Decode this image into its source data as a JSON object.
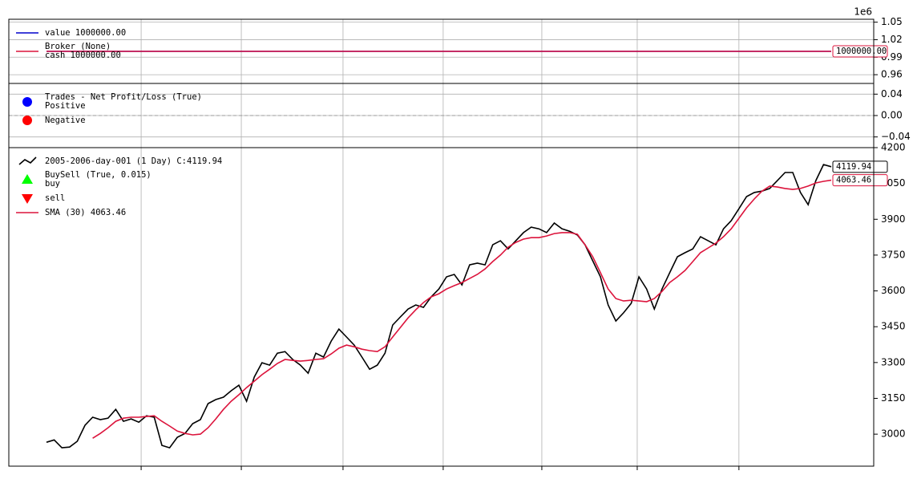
{
  "chart_data": [
    {
      "type": "line",
      "offset_label": "1e6",
      "xlim": [
        -24.5,
        537.6
      ],
      "xticks": [
        61.5,
        126.6,
        192.7,
        257.8,
        321.9,
        383.9,
        450
      ],
      "ylim": [
        945000,
        1055000
      ],
      "yticks": [
        {
          "value": 960000,
          "label": "0.96"
        },
        {
          "value": 990000,
          "label": "0.99"
        },
        {
          "value": 1020000,
          "label": "1.02"
        },
        {
          "value": 1050000,
          "label": "1.05"
        }
      ],
      "ygrid": true,
      "series": [
        {
          "name": "value 1000000.00",
          "color": "#0000cc",
          "marker": "line",
          "x": [
            0,
            510
          ],
          "values": [
            1000000,
            1000000
          ]
        },
        {
          "name": "cash 1000000.00",
          "legend_title": "Broker (None)",
          "color": "#dc143c",
          "marker": "line",
          "x": [
            0,
            510
          ],
          "values": [
            1000000,
            1000000
          ],
          "value_labels": [
            null,
            "1000000.00"
          ]
        }
      ]
    },
    {
      "type": "scatter",
      "xlim": [
        -24.5,
        537.6
      ],
      "xticks": [
        61.5,
        126.6,
        192.7,
        257.8,
        321.9,
        383.9,
        450
      ],
      "ylim": [
        -0.06,
        0.06
      ],
      "yticks": [
        {
          "value": -0.04,
          "label": "−0.04"
        },
        {
          "value": 0,
          "label": "0.00"
        },
        {
          "value": 0.04,
          "label": "0.04"
        }
      ],
      "ygrid": true,
      "hline": 0,
      "series": [
        {
          "name": "Positive",
          "legend_title": "Trades - Net Profit/Loss (True)",
          "color": "#0000ff",
          "marker": "circle",
          "x": [],
          "values": []
        },
        {
          "name": "Negative",
          "color": "#ff0000",
          "marker": "circle",
          "x": [],
          "values": []
        }
      ]
    },
    {
      "type": "line",
      "xlim": [
        -24.5,
        537.6
      ],
      "xticks": [
        61.5,
        126.6,
        192.7,
        257.8,
        321.9,
        383.9,
        450
      ],
      "ylim": [
        2866,
        4200
      ],
      "yticks": [
        3000,
        3150,
        3300,
        3450,
        3600,
        3750,
        3900,
        4050,
        4200
      ],
      "ygrid": false,
      "series": [
        {
          "name": "2005-2006-day-001 (1 Day) C:4119.94",
          "color": "#000000",
          "marker": "zigzag",
          "x": [
            0,
            5,
            10,
            15,
            20,
            25,
            30,
            35,
            40,
            45,
            50,
            55,
            60,
            65,
            70,
            75,
            80,
            85,
            90,
            95,
            100,
            105,
            110,
            115,
            120,
            125,
            130,
            135,
            140,
            145,
            150,
            155,
            160,
            165,
            170,
            175,
            180,
            185,
            190,
            195,
            200,
            205,
            210,
            215,
            220,
            225,
            230,
            235,
            240,
            245,
            250,
            255,
            260,
            265,
            270,
            275,
            280,
            285,
            290,
            295,
            300,
            305,
            310,
            315,
            320,
            325,
            330,
            335,
            340,
            345,
            350,
            355,
            360,
            365,
            370,
            375,
            380,
            385,
            390,
            395,
            400,
            405,
            410,
            415,
            420,
            425,
            430,
            435,
            440,
            445,
            450,
            455,
            460,
            465,
            470,
            475,
            480,
            485,
            490,
            495,
            500,
            505,
            510
          ],
          "values": [
            2966,
            2976,
            2943,
            2946,
            2970,
            3037,
            3071,
            3061,
            3067,
            3104,
            3054,
            3064,
            3050,
            3077,
            3071,
            2953,
            2943,
            2987,
            3003,
            3044,
            3061,
            3128,
            3145,
            3155,
            3182,
            3205,
            3138,
            3239,
            3299,
            3289,
            3339,
            3346,
            3313,
            3289,
            3255,
            3339,
            3323,
            3390,
            3440,
            3407,
            3373,
            3323,
            3272,
            3289,
            3339,
            3457,
            3491,
            3524,
            3541,
            3531,
            3575,
            3608,
            3659,
            3669,
            3625,
            3709,
            3716,
            3709,
            3793,
            3810,
            3776,
            3810,
            3844,
            3867,
            3860,
            3844,
            3884,
            3860,
            3850,
            3834,
            3793,
            3726,
            3659,
            3541,
            3474,
            3508,
            3548,
            3659,
            3608,
            3524,
            3608,
            3676,
            3743,
            3760,
            3776,
            3827,
            3810,
            3793,
            3860,
            3894,
            3944,
            3995,
            4012,
            4018,
            4029,
            4062,
            4096,
            4096,
            4012,
            3961,
            4062,
            4129,
            4119.94
          ],
          "value_labels": [
            null,
            null,
            null,
            null,
            null,
            null,
            null,
            null,
            null,
            null,
            null,
            null,
            null,
            null,
            null,
            null,
            null,
            null,
            null,
            null,
            null,
            null,
            null,
            null,
            null,
            null,
            null,
            null,
            null,
            null,
            null,
            null,
            null,
            null,
            null,
            null,
            null,
            null,
            null,
            null,
            null,
            null,
            null,
            null,
            null,
            null,
            null,
            null,
            null,
            null,
            null,
            null,
            null,
            null,
            null,
            null,
            null,
            null,
            null,
            null,
            null,
            null,
            null,
            null,
            null,
            null,
            null,
            null,
            null,
            null,
            null,
            null,
            null,
            null,
            null,
            null,
            null,
            null,
            null,
            null,
            null,
            null,
            null,
            null,
            null,
            null,
            null,
            null,
            null,
            null,
            null,
            null,
            null,
            null,
            null,
            null,
            null,
            null,
            null,
            null,
            null,
            null,
            "4119.94"
          ]
        },
        {
          "name": "buy",
          "legend_title": "BuySell (True, 0.015)",
          "color": "#00ff00",
          "marker": "up",
          "x": [],
          "values": []
        },
        {
          "name": "sell",
          "color": "#ff0000",
          "marker": "down",
          "x": [],
          "values": []
        },
        {
          "name": "SMA (30) 4063.46",
          "color": "#dc143c",
          "marker": "line",
          "x": [
            30,
            35,
            40,
            45,
            50,
            55,
            60,
            65,
            70,
            75,
            80,
            85,
            90,
            95,
            100,
            105,
            110,
            115,
            120,
            125,
            130,
            135,
            140,
            145,
            150,
            155,
            160,
            165,
            170,
            175,
            180,
            185,
            190,
            195,
            200,
            205,
            210,
            215,
            220,
            225,
            230,
            235,
            240,
            245,
            250,
            255,
            260,
            265,
            270,
            275,
            280,
            285,
            290,
            295,
            300,
            305,
            310,
            315,
            320,
            325,
            330,
            335,
            340,
            345,
            350,
            355,
            360,
            365,
            370,
            375,
            380,
            385,
            390,
            395,
            400,
            405,
            410,
            415,
            420,
            425,
            430,
            435,
            440,
            445,
            450,
            455,
            460,
            465,
            470,
            475,
            480,
            485,
            490,
            495,
            500,
            505,
            510
          ],
          "values": [
            2983,
            3003,
            3027,
            3054,
            3067,
            3071,
            3071,
            3074,
            3077,
            3054,
            3034,
            3013,
            3003,
            2997,
            3000,
            3027,
            3064,
            3104,
            3138,
            3165,
            3195,
            3222,
            3249,
            3272,
            3296,
            3313,
            3309,
            3306,
            3309,
            3313,
            3316,
            3336,
            3360,
            3373,
            3366,
            3356,
            3350,
            3346,
            3366,
            3407,
            3447,
            3487,
            3521,
            3551,
            3575,
            3588,
            3608,
            3622,
            3635,
            3652,
            3669,
            3692,
            3723,
            3750,
            3783,
            3803,
            3817,
            3823,
            3823,
            3830,
            3840,
            3844,
            3844,
            3837,
            3793,
            3743,
            3676,
            3608,
            3568,
            3558,
            3561,
            3558,
            3555,
            3568,
            3598,
            3635,
            3659,
            3686,
            3723,
            3760,
            3780,
            3800,
            3827,
            3860,
            3904,
            3948,
            3985,
            4018,
            4039,
            4035,
            4029,
            4025,
            4029,
            4039,
            4052,
            4059,
            4063.46
          ],
          "value_labels": [
            null,
            null,
            null,
            null,
            null,
            null,
            null,
            null,
            null,
            null,
            null,
            null,
            null,
            null,
            null,
            null,
            null,
            null,
            null,
            null,
            null,
            null,
            null,
            null,
            null,
            null,
            null,
            null,
            null,
            null,
            null,
            null,
            null,
            null,
            null,
            null,
            null,
            null,
            null,
            null,
            null,
            null,
            null,
            null,
            null,
            null,
            null,
            null,
            null,
            null,
            null,
            null,
            null,
            null,
            null,
            null,
            null,
            null,
            null,
            null,
            null,
            null,
            null,
            null,
            null,
            null,
            null,
            null,
            null,
            null,
            null,
            null,
            null,
            null,
            null,
            null,
            null,
            null,
            null,
            null,
            null,
            null,
            null,
            null,
            null,
            null,
            null,
            null,
            null,
            null,
            null,
            null,
            null,
            null,
            null,
            null,
            "4063.46"
          ]
        }
      ]
    }
  ]
}
